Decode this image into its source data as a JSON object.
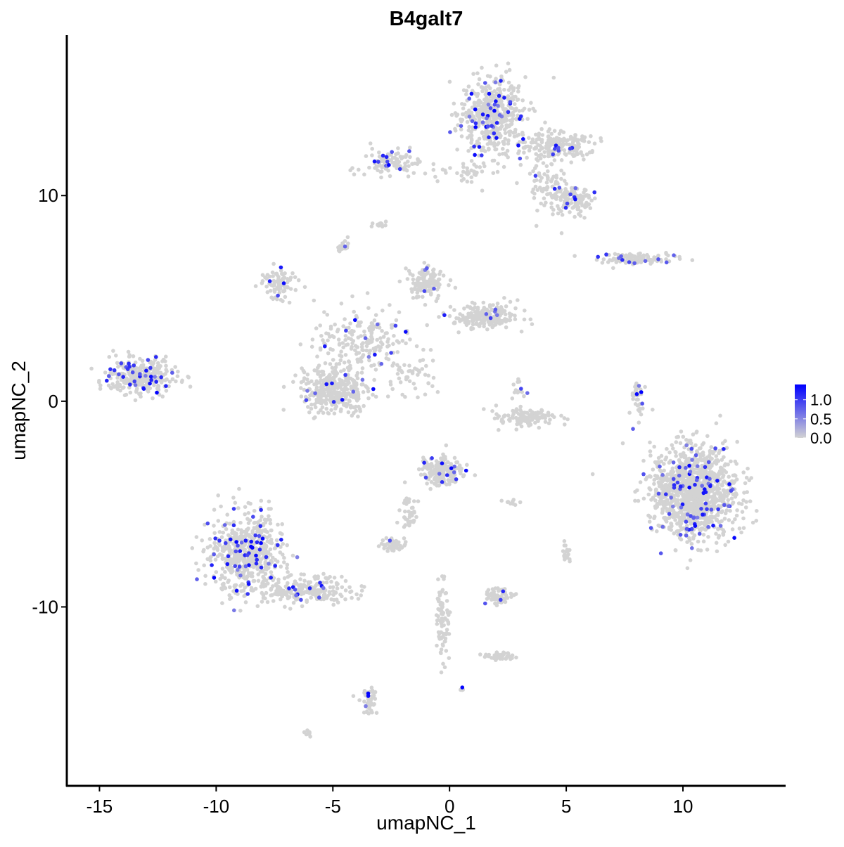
{
  "chart_data": {
    "type": "scatter",
    "title": "B4galt7",
    "xlabel": "umapNC_1",
    "ylabel": "umapNC_2",
    "xlim": [
      -16.4,
      14.4
    ],
    "ylim": [
      -18.7,
      17.8
    ],
    "xticks": [
      -15,
      -10,
      -5,
      0,
      5,
      10
    ],
    "xtick_labels": [
      "-15",
      "-10",
      "-5",
      "0",
      "5",
      "10"
    ],
    "yticks": [
      -10,
      0,
      10
    ],
    "ytick_labels": [
      "-10",
      "0",
      "10"
    ],
    "grid": false,
    "legend": {
      "placement": "right",
      "type": "colorbar",
      "range": [
        0,
        1.4
      ],
      "ticks": [
        0.0,
        0.5,
        1.0
      ],
      "tick_labels": [
        "0.0",
        "0.5",
        "1.0"
      ],
      "low_color": "#d3d3d3",
      "high_color": "#0000ff"
    },
    "clusters": [
      {
        "center": [
          1.8,
          13.9
        ],
        "spread": [
          1.0,
          1.3
        ],
        "n": 500,
        "expressing_fraction": 0.08
      },
      {
        "center": [
          4.5,
          12.4
        ],
        "spread": [
          1.2,
          0.5
        ],
        "n": 200,
        "expressing_fraction": 0.05
      },
      {
        "center": [
          5.3,
          9.8
        ],
        "spread": [
          0.6,
          0.5
        ],
        "n": 120,
        "expressing_fraction": 0.05
      },
      {
        "center": [
          4.2,
          10.5
        ],
        "spread": [
          0.5,
          1.0
        ],
        "n": 80,
        "expressing_fraction": 0.04
      },
      {
        "center": [
          -2.5,
          11.6
        ],
        "spread": [
          1.0,
          0.4
        ],
        "n": 100,
        "expressing_fraction": 0.1
      },
      {
        "center": [
          0.8,
          11.2
        ],
        "spread": [
          1.0,
          0.3
        ],
        "n": 40,
        "expressing_fraction": 0.0
      },
      {
        "center": [
          -3.0,
          8.6
        ],
        "spread": [
          0.2,
          0.1
        ],
        "n": 15,
        "expressing_fraction": 0.0
      },
      {
        "center": [
          -4.55,
          7.5
        ],
        "spread": [
          0.2,
          0.2
        ],
        "n": 20,
        "expressing_fraction": 0.05
      },
      {
        "center": [
          8.0,
          6.9
        ],
        "spread": [
          1.2,
          0.2
        ],
        "n": 120,
        "expressing_fraction": 0.08
      },
      {
        "center": [
          -7.3,
          5.7
        ],
        "spread": [
          0.6,
          0.5
        ],
        "n": 80,
        "expressing_fraction": 0.05
      },
      {
        "center": [
          -3.6,
          3.1
        ],
        "spread": [
          1.5,
          1.2
        ],
        "n": 200,
        "expressing_fraction": 0.04
      },
      {
        "center": [
          -1.0,
          5.8
        ],
        "spread": [
          0.6,
          0.6
        ],
        "n": 120,
        "expressing_fraction": 0.03
      },
      {
        "center": [
          1.5,
          4.1
        ],
        "spread": [
          1.0,
          0.4
        ],
        "n": 200,
        "expressing_fraction": 0.04
      },
      {
        "center": [
          -4.95,
          0.55
        ],
        "spread": [
          1.0,
          0.8
        ],
        "n": 350,
        "expressing_fraction": 0.04
      },
      {
        "center": [
          -1.5,
          1.2
        ],
        "spread": [
          0.8,
          0.8
        ],
        "n": 40,
        "expressing_fraction": 0.03
      },
      {
        "center": [
          -13.2,
          1.2
        ],
        "spread": [
          1.1,
          0.6
        ],
        "n": 300,
        "expressing_fraction": 0.12
      },
      {
        "center": [
          3.3,
          -0.8
        ],
        "spread": [
          0.9,
          0.3
        ],
        "n": 120,
        "expressing_fraction": 0.0
      },
      {
        "center": [
          3.0,
          0.7
        ],
        "spread": [
          0.2,
          0.3
        ],
        "n": 15,
        "expressing_fraction": 0.1
      },
      {
        "center": [
          8.1,
          0.1
        ],
        "spread": [
          0.2,
          0.8
        ],
        "n": 40,
        "expressing_fraction": 0.05
      },
      {
        "center": [
          10.5,
          -4.4
        ],
        "spread": [
          1.3,
          1.6
        ],
        "n": 1200,
        "expressing_fraction": 0.06
      },
      {
        "center": [
          -0.3,
          -3.4
        ],
        "spread": [
          0.6,
          0.5
        ],
        "n": 200,
        "expressing_fraction": 0.06
      },
      {
        "center": [
          -1.7,
          -5.5
        ],
        "spread": [
          0.3,
          0.7
        ],
        "n": 40,
        "expressing_fraction": 0.0
      },
      {
        "center": [
          -2.4,
          -7.0
        ],
        "spread": [
          0.4,
          0.2
        ],
        "n": 50,
        "expressing_fraction": 0.02
      },
      {
        "center": [
          -8.7,
          -7.5
        ],
        "spread": [
          1.1,
          1.4
        ],
        "n": 600,
        "expressing_fraction": 0.1
      },
      {
        "center": [
          -6.0,
          -9.2
        ],
        "spread": [
          1.3,
          0.5
        ],
        "n": 200,
        "expressing_fraction": 0.06
      },
      {
        "center": [
          2.1,
          -9.5
        ],
        "spread": [
          0.4,
          0.3
        ],
        "n": 60,
        "expressing_fraction": 0.1
      },
      {
        "center": [
          2.1,
          -12.4
        ],
        "spread": [
          0.5,
          0.2
        ],
        "n": 40,
        "expressing_fraction": 0.0
      },
      {
        "center": [
          -0.3,
          -10.5
        ],
        "spread": [
          0.2,
          1.5
        ],
        "n": 80,
        "expressing_fraction": 0.0
      },
      {
        "center": [
          -3.45,
          -14.6
        ],
        "spread": [
          0.2,
          0.5
        ],
        "n": 50,
        "expressing_fraction": 0.04
      },
      {
        "center": [
          5.0,
          -7.3
        ],
        "spread": [
          0.15,
          0.3
        ],
        "n": 20,
        "expressing_fraction": 0.0
      },
      {
        "center": [
          2.6,
          -4.9
        ],
        "spread": [
          0.3,
          0.1
        ],
        "n": 10,
        "expressing_fraction": 0.0
      },
      {
        "center": [
          -6.1,
          -16.1
        ],
        "spread": [
          0.1,
          0.1
        ],
        "n": 8,
        "expressing_fraction": 0.0
      },
      {
        "center": [
          0.55,
          -14.0
        ],
        "spread": [
          0.05,
          0.05
        ],
        "n": 5,
        "expressing_fraction": 0.4
      }
    ]
  }
}
